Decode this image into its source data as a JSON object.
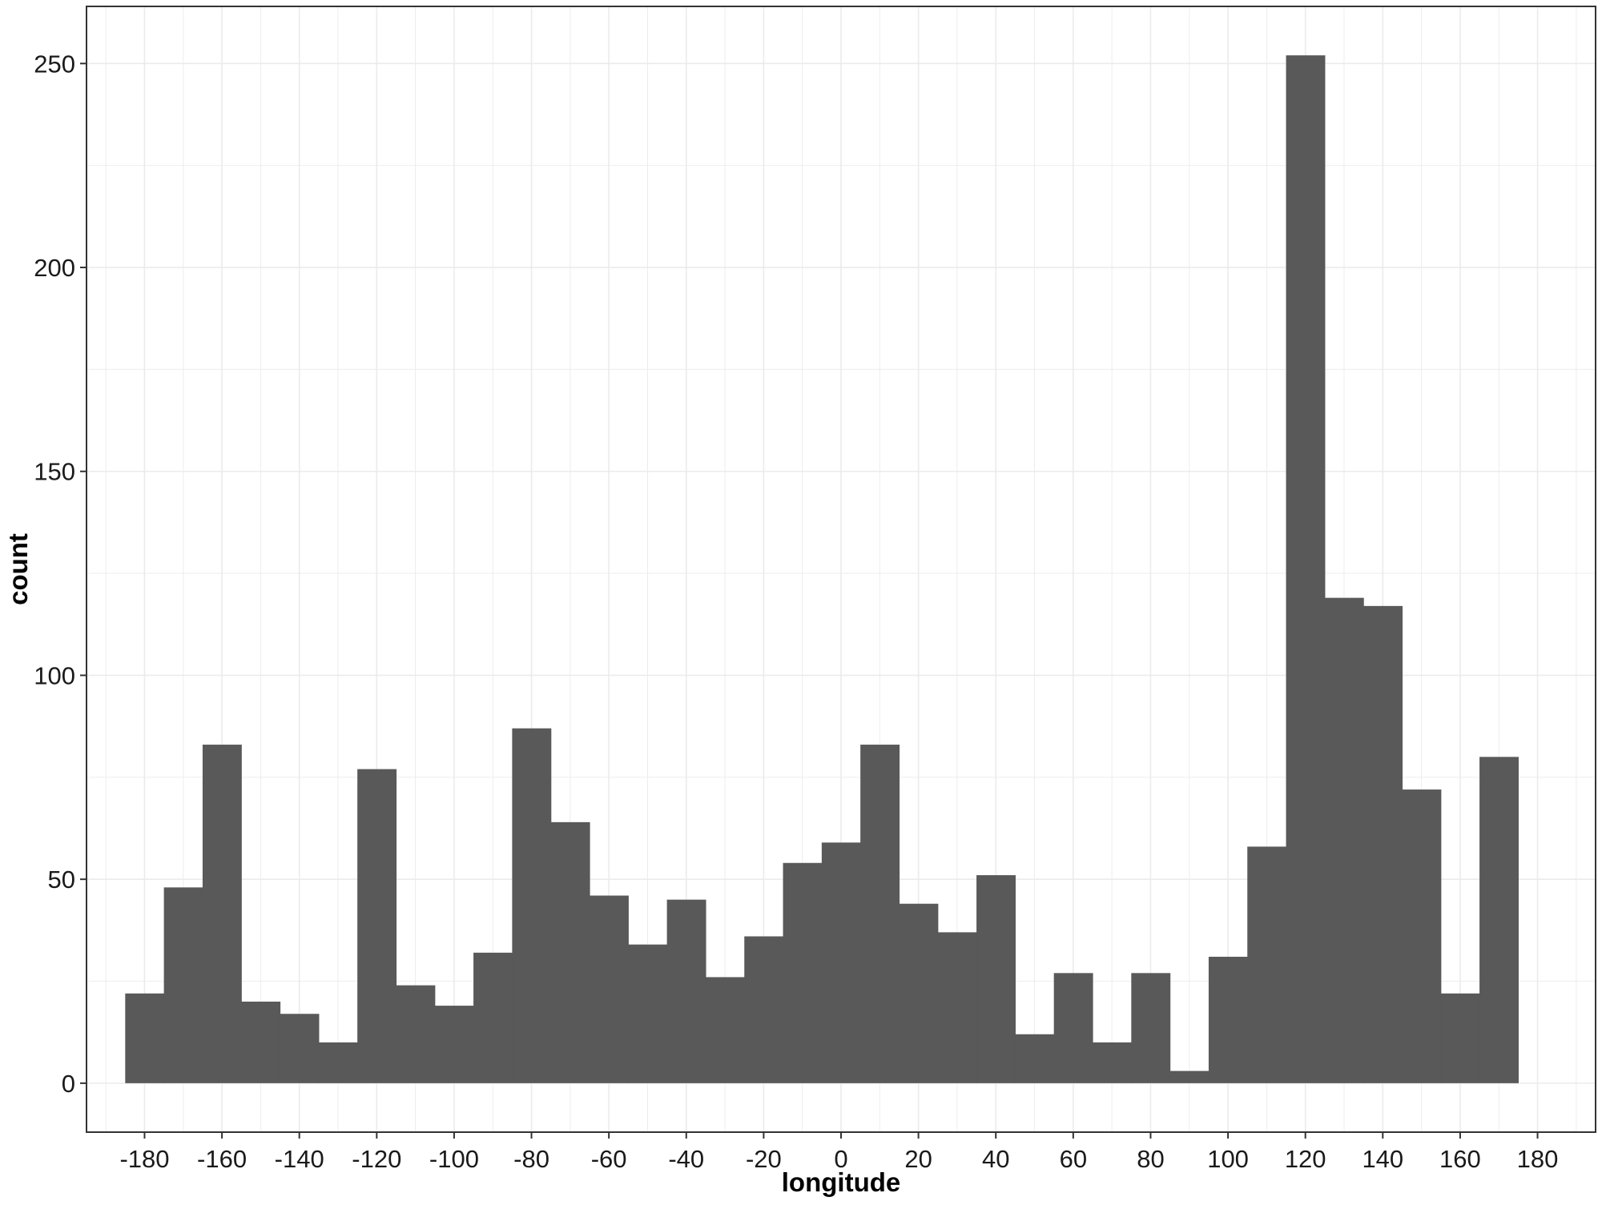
{
  "chart_data": {
    "type": "bar",
    "title": "",
    "xlabel": "longitude",
    "ylabel": "count",
    "bin_width": 10,
    "bin_centers": [
      -180,
      -170,
      -160,
      -150,
      -140,
      -130,
      -120,
      -110,
      -100,
      -90,
      -80,
      -70,
      -60,
      -50,
      -40,
      -30,
      -20,
      -10,
      0,
      10,
      20,
      30,
      40,
      50,
      60,
      70,
      80,
      90,
      100,
      110,
      120,
      130,
      140,
      150,
      160,
      170
    ],
    "values": [
      22,
      48,
      83,
      20,
      17,
      10,
      77,
      24,
      19,
      32,
      87,
      64,
      46,
      34,
      45,
      26,
      36,
      54,
      59,
      83,
      44,
      37,
      51,
      12,
      27,
      10,
      27,
      3,
      31,
      58,
      252,
      119,
      117,
      72,
      22,
      80
    ],
    "xlim": [
      -195,
      195
    ],
    "ylim": [
      -12,
      264
    ],
    "x_ticks": [
      -180,
      -160,
      -140,
      -120,
      -100,
      -80,
      -60,
      -40,
      -20,
      0,
      20,
      40,
      60,
      80,
      100,
      120,
      140,
      160,
      180
    ],
    "x_tick_labels": [
      "-180",
      "-160",
      "-140",
      "-120",
      "-100",
      "-80",
      "-60",
      "-40",
      "-20",
      "0",
      "20",
      "40",
      "60",
      "80",
      "100",
      "120",
      "140",
      "160",
      "180"
    ],
    "y_ticks": [
      0,
      50,
      100,
      150,
      200,
      250
    ],
    "y_tick_labels": [
      "0",
      "50",
      "100",
      "150",
      "200",
      "250"
    ],
    "grid": true,
    "bar_color": "#595959",
    "grid_color": "#ebebeb",
    "panel_border_color": "#333333"
  }
}
